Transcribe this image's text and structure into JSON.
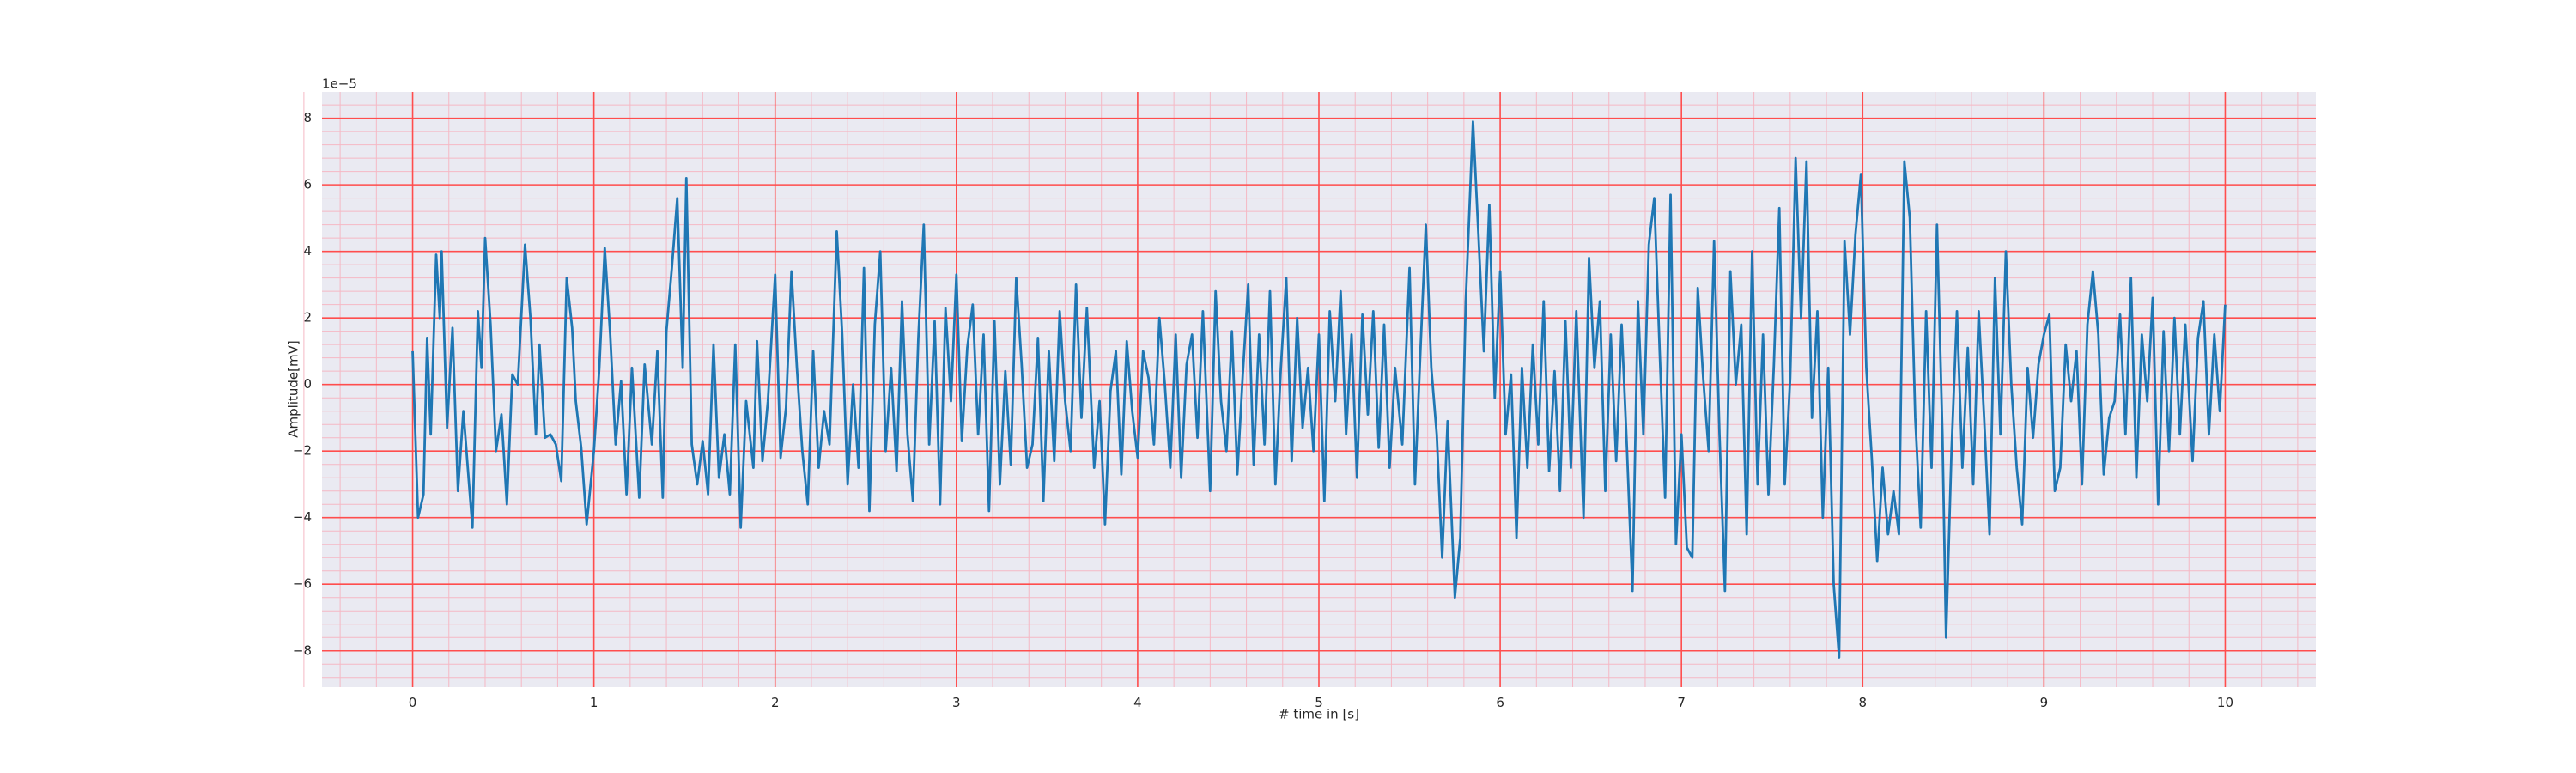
{
  "chart_data": {
    "type": "line",
    "xlabel": "# time in [s]",
    "ylabel": "Amplitude[mV]",
    "offset_text": "1e−5",
    "color": "#1f77b4",
    "background": "#eaeaf2",
    "grid_color": "#ff4d4d",
    "minor_grid_color": "#f5b8c4",
    "grid": true,
    "minor_grid": true,
    "minor_divisions": 5,
    "xlim": [
      -0.5,
      10.5
    ],
    "ylim": [
      -9.09,
      8.79
    ],
    "xticks": [
      0,
      1,
      2,
      3,
      4,
      5,
      6,
      7,
      8,
      9,
      10
    ],
    "yticks": [
      {
        "value": -8,
        "label": "−8"
      },
      {
        "value": -6,
        "label": "−6"
      },
      {
        "value": -4,
        "label": "−4"
      },
      {
        "value": -2,
        "label": "−2"
      },
      0,
      2,
      4,
      6,
      8
    ],
    "x": [
      0,
      0.03,
      0.06,
      0.08,
      0.1,
      0.13,
      0.15,
      0.16,
      0.19,
      0.22,
      0.25,
      0.28,
      0.31,
      0.33,
      0.36,
      0.38,
      0.4,
      0.43,
      0.46,
      0.49,
      0.52,
      0.55,
      0.58,
      0.62,
      0.65,
      0.68,
      0.7,
      0.73,
      0.76,
      0.79,
      0.82,
      0.85,
      0.88,
      0.9,
      0.93,
      0.96,
      1.0,
      1.03,
      1.06,
      1.09,
      1.12,
      1.15,
      1.18,
      1.21,
      1.25,
      1.28,
      1.32,
      1.35,
      1.38,
      1.4,
      1.43,
      1.46,
      1.49,
      1.51,
      1.54,
      1.57,
      1.6,
      1.63,
      1.66,
      1.69,
      1.72,
      1.75,
      1.78,
      1.81,
      1.84,
      1.88,
      1.9,
      1.93,
      1.96,
      2.0,
      2.03,
      2.06,
      2.09,
      2.12,
      2.15,
      2.18,
      2.21,
      2.24,
      2.27,
      2.3,
      2.34,
      2.37,
      2.4,
      2.43,
      2.46,
      2.49,
      2.52,
      2.55,
      2.58,
      2.61,
      2.64,
      2.67,
      2.7,
      2.73,
      2.76,
      2.79,
      2.82,
      2.85,
      2.88,
      2.91,
      2.94,
      2.97,
      3.0,
      3.03,
      3.06,
      3.09,
      3.12,
      3.15,
      3.18,
      3.21,
      3.24,
      3.27,
      3.3,
      3.33,
      3.36,
      3.39,
      3.42,
      3.45,
      3.48,
      3.51,
      3.54,
      3.57,
      3.6,
      3.63,
      3.66,
      3.69,
      3.72,
      3.76,
      3.79,
      3.82,
      3.85,
      3.88,
      3.91,
      3.94,
      3.97,
      4.0,
      4.03,
      4.06,
      4.09,
      4.12,
      4.15,
      4.18,
      4.21,
      4.24,
      4.27,
      4.3,
      4.33,
      4.36,
      4.4,
      4.43,
      4.46,
      4.49,
      4.52,
      4.55,
      4.58,
      4.61,
      4.64,
      4.67,
      4.7,
      4.73,
      4.76,
      4.79,
      4.82,
      4.85,
      4.88,
      4.91,
      4.94,
      4.97,
      5.0,
      5.03,
      5.06,
      5.09,
      5.12,
      5.15,
      5.18,
      5.21,
      5.24,
      5.27,
      5.3,
      5.33,
      5.36,
      5.39,
      5.42,
      5.46,
      5.5,
      5.53,
      5.56,
      5.59,
      5.62,
      5.65,
      5.68,
      5.71,
      5.75,
      5.78,
      5.81,
      5.85,
      5.88,
      5.91,
      5.94,
      5.97,
      6.0,
      6.03,
      6.06,
      6.09,
      6.12,
      6.15,
      6.18,
      6.21,
      6.24,
      6.27,
      6.3,
      6.33,
      6.36,
      6.39,
      6.42,
      6.46,
      6.49,
      6.52,
      6.55,
      6.58,
      6.61,
      6.64,
      6.67,
      6.7,
      6.73,
      6.76,
      6.79,
      6.82,
      6.85,
      6.88,
      6.91,
      6.94,
      6.97,
      7.0,
      7.03,
      7.06,
      7.09,
      7.12,
      7.15,
      7.18,
      7.21,
      7.24,
      7.27,
      7.3,
      7.33,
      7.36,
      7.39,
      7.42,
      7.45,
      7.48,
      7.51,
      7.54,
      7.57,
      7.6,
      7.63,
      7.66,
      7.69,
      7.72,
      7.75,
      7.78,
      7.81,
      7.84,
      7.87,
      7.9,
      7.93,
      7.96,
      7.99,
      8.02,
      8.05,
      8.08,
      8.11,
      8.14,
      8.17,
      8.2,
      8.23,
      8.26,
      8.29,
      8.32,
      8.35,
      8.38,
      8.41,
      8.44,
      8.46,
      8.49,
      8.52,
      8.55,
      8.58,
      8.61,
      8.64,
      8.67,
      8.7,
      8.73,
      8.76,
      8.79,
      8.82,
      8.85,
      8.88,
      8.91,
      8.94,
      8.97,
      9.0,
      9.03,
      9.06,
      9.09,
      9.12,
      9.15,
      9.18,
      9.21,
      9.24,
      9.27,
      9.3,
      9.33,
      9.36,
      9.39,
      9.42,
      9.45,
      9.48,
      9.51,
      9.54,
      9.57,
      9.6,
      9.63,
      9.66,
      9.69,
      9.72,
      9.75,
      9.78,
      9.82,
      9.85,
      9.88,
      9.91,
      9.94,
      9.97,
      10.0
    ],
    "values": [
      1,
      -4,
      -3.3,
      1.4,
      -1.5,
      3.9,
      2,
      4,
      -1.3,
      1.7,
      -3.2,
      -0.8,
      -2.9,
      -4.3,
      2.2,
      0.5,
      4.4,
      1.8,
      -2,
      -0.9,
      -3.6,
      0.3,
      0,
      4.2,
      2,
      -1.5,
      1.2,
      -1.6,
      -1.5,
      -1.8,
      -2.9,
      3.2,
      1.7,
      -0.5,
      -1.9,
      -4.2,
      -2,
      0.5,
      4.1,
      1.5,
      -1.8,
      0.1,
      -3.3,
      0.5,
      -3.4,
      0.6,
      -1.8,
      1,
      -3.4,
      1.6,
      3.5,
      5.6,
      0.5,
      6.2,
      -1.8,
      -3,
      -1.7,
      -3.3,
      1.2,
      -2.8,
      -1.5,
      -3.3,
      1.2,
      -4.3,
      -0.5,
      -2.5,
      1.3,
      -2.3,
      -0.5,
      3.3,
      -2.2,
      -0.7,
      3.4,
      0.5,
      -2,
      -3.6,
      1,
      -2.5,
      -0.8,
      -1.8,
      4.6,
      1.5,
      -3,
      0,
      -2.5,
      3.5,
      -3.8,
      1.8,
      4,
      -2,
      0.5,
      -2.6,
      2.5,
      -1.5,
      -3.5,
      1.4,
      4.8,
      -1.8,
      1.9,
      -3.6,
      2.3,
      -0.5,
      3.3,
      -1.7,
      1.1,
      2.4,
      -1.5,
      1.5,
      -3.8,
      1.9,
      -3,
      0.4,
      -2.4,
      3.2,
      0.6,
      -2.5,
      -1.8,
      1.4,
      -3.5,
      1,
      -2.3,
      2.2,
      -0.5,
      -2,
      3,
      -1,
      2.3,
      -2.5,
      -0.5,
      -4.2,
      -0.2,
      1,
      -2.7,
      1.3,
      -0.8,
      -2.2,
      1,
      0.2,
      -1.8,
      2,
      0,
      -2.5,
      1.5,
      -2.8,
      0.6,
      1.5,
      -1.6,
      2.2,
      -3.2,
      2.8,
      -0.5,
      -2,
      1.6,
      -2.7,
      0.3,
      3,
      -2.4,
      1.5,
      -1.8,
      2.8,
      -3,
      0.5,
      3.2,
      -2.3,
      2,
      -1.3,
      0.5,
      -2,
      1.5,
      -3.5,
      2.2,
      -0.5,
      2.8,
      -1.5,
      1.5,
      -2.8,
      2.1,
      -0.9,
      2.2,
      -1.9,
      1.8,
      -2.5,
      0.5,
      -1.8,
      3.5,
      -3,
      1,
      4.8,
      0.5,
      -1.5,
      -5.2,
      -1.1,
      -6.4,
      -4.6,
      2.5,
      7.9,
      4.5,
      1,
      5.4,
      -0.4,
      3.4,
      -1.5,
      0.3,
      -4.6,
      0.5,
      -2.5,
      1.2,
      -1.8,
      2.5,
      -2.6,
      0.4,
      -3.2,
      1.9,
      -2.5,
      2.2,
      -4,
      3.8,
      0.5,
      2.5,
      -3.2,
      1.5,
      -2.3,
      1.8,
      -2,
      -6.2,
      2.5,
      -1.5,
      4.2,
      5.6,
      1,
      -3.4,
      5.7,
      -4.8,
      -1.5,
      -4.9,
      -5.2,
      2.9,
      0.2,
      -2,
      4.3,
      -1.5,
      -6.2,
      3.4,
      0,
      1.8,
      -4.5,
      4,
      -3,
      1.5,
      -3.3,
      0.6,
      5.3,
      -3,
      0.2,
      6.8,
      2,
      6.7,
      -1,
      2.2,
      -4,
      0.5,
      -6,
      -8.2,
      4.3,
      1.5,
      4.5,
      6.3,
      0.5,
      -2.2,
      -5.3,
      -2.5,
      -4.5,
      -3.2,
      -4.5,
      6.7,
      5,
      -1,
      -4.3,
      2.2,
      -2.5,
      4.8,
      -1.5,
      -7.6,
      -2,
      2.2,
      -2.5,
      1.1,
      -3,
      2.2,
      -1,
      -4.5,
      3.2,
      -1.5,
      4,
      0,
      -2.5,
      -4.2,
      0.5,
      -1.6,
      0.6,
      1.5,
      2.1,
      -3.2,
      -2.5,
      1.2,
      -0.5,
      1,
      -3,
      1.8,
      3.4,
      1.5,
      -2.7,
      -1,
      -0.5,
      2.1,
      -1.5,
      3.2,
      -2.8,
      1.5,
      -0.5,
      2.6,
      -3.6,
      1.6,
      -2,
      2,
      -1.5,
      1.8,
      -2.3,
      1.4,
      2.5,
      -1.5,
      1.5,
      -0.8,
      2.4
    ]
  }
}
